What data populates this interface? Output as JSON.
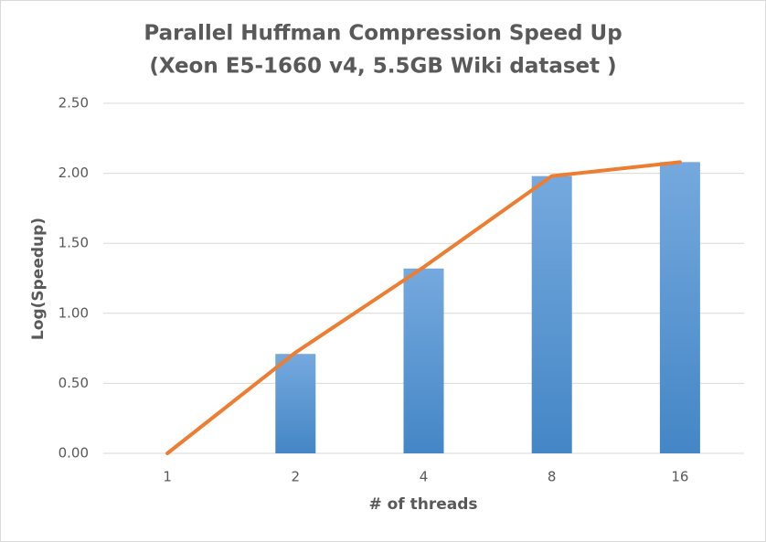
{
  "chart_data": {
    "type": "combo",
    "title": [
      "Parallel  Huffman Compression Speed Up",
      "(Xeon E5-1660 v4, 5.5GB Wiki dataset )"
    ],
    "x_label": "# of threads",
    "y_label": "Log(Speedup)",
    "categories": [
      "1",
      "2",
      "4",
      "8",
      "16"
    ],
    "series": [
      {
        "type": "bar",
        "color": "#5b9bd5",
        "values": [
          0,
          0.71,
          1.32,
          1.98,
          2.08
        ]
      },
      {
        "type": "line",
        "color": "#ed7d31",
        "values": [
          0,
          0.72,
          1.33,
          1.98,
          2.08
        ]
      }
    ],
    "ylim": [
      0,
      2.5
    ],
    "yticks": [
      {
        "value": 0,
        "label": "0.00"
      },
      {
        "value": 0.5,
        "label": "0.50"
      },
      {
        "value": 1,
        "label": "1.00"
      },
      {
        "value": 1.5,
        "label": "1.50"
      },
      {
        "value": 2,
        "label": "2.00"
      },
      {
        "value": 2.5,
        "label": "2.50"
      }
    ],
    "grid": true
  }
}
